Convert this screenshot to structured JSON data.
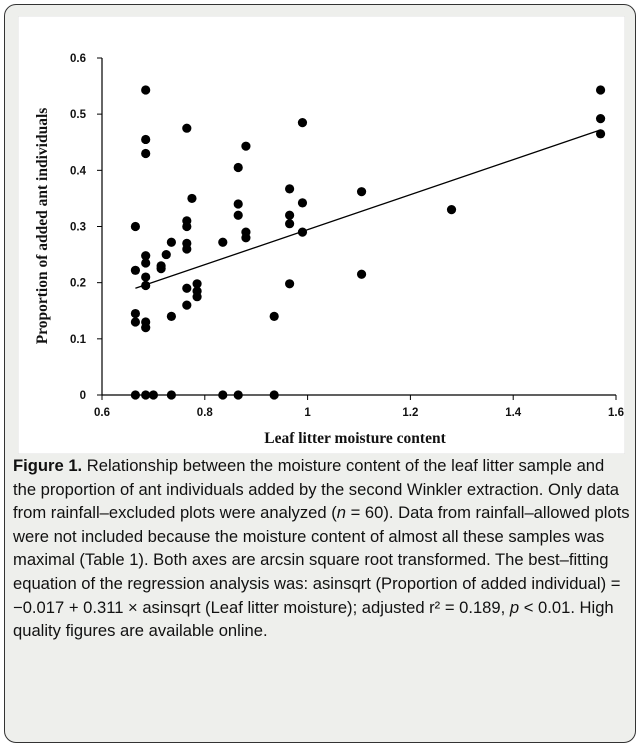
{
  "chart_data": {
    "type": "scatter",
    "xlabel": "Leaf litter moisture content",
    "ylabel": "Proportion of added ant individuals",
    "series": [
      {
        "color": "#000000",
        "x": [
          0.665,
          0.665,
          0.665,
          0.665,
          0.665,
          0.685,
          0.685,
          0.685,
          0.685,
          0.685,
          0.685,
          0.685,
          0.685,
          0.685,
          0.685,
          0.7,
          0.715,
          0.715,
          0.725,
          0.735,
          0.735,
          0.735,
          0.765,
          0.765,
          0.765,
          0.765,
          0.765,
          0.765,
          0.765,
          0.775,
          0.785,
          0.785,
          0.785,
          0.835,
          0.835,
          0.865,
          0.865,
          0.865,
          0.865,
          0.88,
          0.88,
          0.88,
          0.935,
          0.935,
          0.965,
          0.965,
          0.965,
          0.965,
          0.99,
          0.99,
          0.99,
          1.105,
          1.105,
          1.28,
          1.57,
          1.57,
          1.57
        ],
        "values": [
          0,
          0.13,
          0.145,
          0.222,
          0.3,
          0,
          0.12,
          0.13,
          0.195,
          0.21,
          0.235,
          0.248,
          0.43,
          0.455,
          0.543,
          0,
          0.225,
          0.23,
          0.25,
          0,
          0.14,
          0.272,
          0.16,
          0.19,
          0.26,
          0.27,
          0.3,
          0.31,
          0.475,
          0.35,
          0.175,
          0.185,
          0.198,
          0,
          0.272,
          0,
          0.32,
          0.34,
          0.405,
          0.28,
          0.29,
          0.443,
          0,
          0.14,
          0.198,
          0.305,
          0.32,
          0.367,
          0.29,
          0.342,
          0.485,
          0.215,
          0.362,
          0.33,
          0.465,
          0.492,
          0.543
        ]
      }
    ],
    "trendline": {
      "x": [
        0.665,
        1.57
      ],
      "y": [
        0.19,
        0.472
      ],
      "color": "#000000"
    },
    "xlim": [
      0.6,
      1.6
    ],
    "ylim": [
      0,
      0.6
    ],
    "xticks": [
      0.6,
      0.8,
      1,
      1.2,
      1.4,
      1.6
    ],
    "yticks": [
      0,
      0.1,
      0.2,
      0.3,
      0.4,
      0.5,
      0.6
    ]
  },
  "caption": {
    "label": "Figure 1.",
    "parts": [
      "Relationship between the moisture content of the leaf litter sample and the proportion of ant individuals added by the second Winkler extraction. Only data from rainfall–excluded plots were analyzed (",
      "n",
      " = 60). Data from rainfall–allowed plots were not included because the moisture content of almost all these samples was maximal (Table 1). Both axes are arcsin square root transformed. The best–fitting equation of the regression analysis was: asinsqrt (Proportion of added individual) = −0.017 + 0.311 × asinsqrt (Leaf litter moisture); adjusted r² = 0.189, ",
      "p",
      " < 0.01. High quality figures are available online."
    ]
  }
}
